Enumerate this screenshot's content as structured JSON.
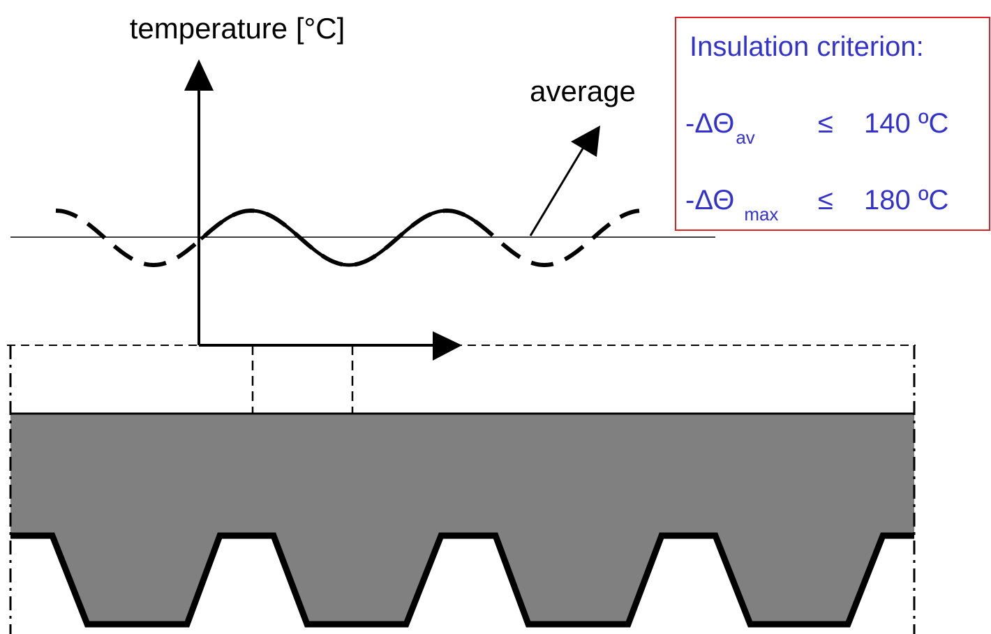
{
  "axis_label": "temperature [°C]",
  "annotation": "average",
  "criterion": {
    "title": "Insulation criterion:",
    "rows": [
      {
        "prefix": "-ΔΘ",
        "subscript": "av",
        "operator": "≤",
        "limit": "140 ºC"
      },
      {
        "prefix": "-ΔΘ",
        "subscript": "max",
        "operator": "≤",
        "limit": "180 ºC"
      }
    ]
  }
}
